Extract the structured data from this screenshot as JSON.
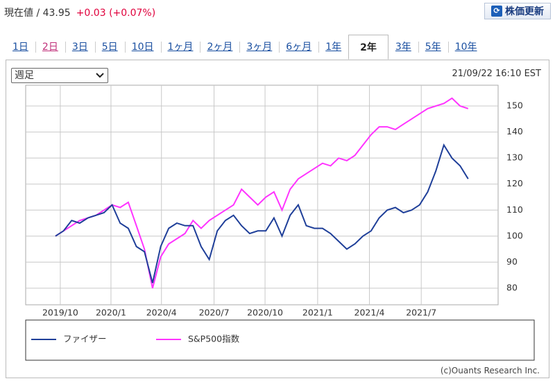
{
  "header": {
    "label": "現在値 / 43.95",
    "change": "+0.03",
    "change_pct": "(+0.07%)",
    "button": "株価更新"
  },
  "tabs": [
    "1日",
    "2日",
    "3日",
    "5日",
    "10日",
    "1ヶ月",
    "2ヶ月",
    "3ヶ月",
    "6ヶ月",
    "1年",
    "2年",
    "3年",
    "5年",
    "10年"
  ],
  "selected_tab": "2年",
  "period_select": "週足",
  "timestamp": "21/09/22 16:10 EST",
  "copyright": "(c)Ouants Research Inc.",
  "chart_data": {
    "type": "line",
    "series": [
      {
        "name": "ファイザー",
        "color": "#1f3f99",
        "values": [
          100,
          102,
          106,
          105,
          107,
          108,
          109,
          112,
          105,
          103,
          96,
          94,
          82,
          96,
          103,
          105,
          104,
          104,
          96,
          91,
          102,
          106,
          108,
          104,
          101,
          102,
          102,
          107,
          100,
          108,
          112,
          104,
          103,
          103,
          101,
          98,
          95,
          97,
          100,
          102,
          107,
          110,
          111,
          109,
          110,
          112,
          117,
          125,
          135,
          130,
          127,
          122
        ]
      },
      {
        "name": "S&P500指数",
        "color": "#ff33ff",
        "values": [
          100,
          102,
          104,
          106,
          107,
          108,
          110,
          112,
          111,
          113,
          104,
          95,
          80,
          92,
          97,
          99,
          101,
          106,
          103,
          106,
          108,
          110,
          112,
          118,
          115,
          112,
          115,
          117,
          110,
          118,
          122,
          124,
          126,
          128,
          127,
          130,
          129,
          131,
          135,
          139,
          142,
          142,
          141,
          143,
          145,
          147,
          149,
          150,
          151,
          153,
          150,
          149
        ]
      }
    ],
    "xlim": [
      -3.68,
      54.7
    ],
    "xticks": [
      {
        "value": 0.6,
        "label": "2019/10"
      },
      {
        "value": 6.86,
        "label": "2020/1"
      },
      {
        "value": 13.1,
        "label": "2020/4"
      },
      {
        "value": 19.6,
        "label": "2020/7"
      },
      {
        "value": 25.9,
        "label": "2020/10"
      },
      {
        "value": 32.4,
        "label": "2021/1"
      },
      {
        "value": 38.8,
        "label": "2021/4"
      },
      {
        "value": 45.2,
        "label": "2021/7"
      }
    ],
    "ylim": [
      73.6,
      158
    ],
    "yticks": [
      80,
      90,
      100,
      110,
      120,
      130,
      140,
      150
    ],
    "grid": true
  }
}
